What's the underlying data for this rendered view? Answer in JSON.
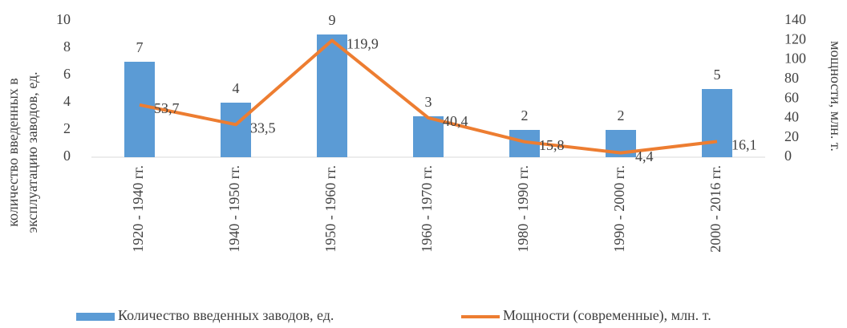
{
  "chart_data": {
    "type": "combo",
    "categories": [
      "1920 - 1940 гг.",
      "1940 - 1950 гг.",
      "1950 - 1960 гг.",
      "1960 - 1970 гг.",
      "1980 - 1990 гг.",
      "1990 - 2000 гг.",
      "2000 - 2016 гг."
    ],
    "series": [
      {
        "name": "Количество введенных заводов, ед.",
        "type": "bar",
        "color": "#5b9bd5",
        "values": [
          7,
          4,
          9,
          3,
          2,
          2,
          5
        ]
      },
      {
        "name": "Мощности (современные), млн. т.",
        "type": "line",
        "axis": "y2",
        "color": "#ed7d31",
        "values": [
          53.7,
          33.5,
          119.9,
          40.4,
          15.8,
          4.4,
          16.1
        ],
        "value_labels": [
          "53,7",
          "33,5",
          "119,9",
          "40,4",
          "15,8",
          "4,4",
          "16,1"
        ]
      }
    ],
    "y_label": [
      "количество введенных в",
      "эксплуатацию заводов, ед."
    ],
    "y2_label": "мощности, млн. т.",
    "ylim": [
      0,
      10
    ],
    "yticks": [
      0,
      2,
      4,
      6,
      8,
      10
    ],
    "y2lim": [
      0,
      140
    ],
    "y2ticks": [
      0,
      20,
      40,
      60,
      80,
      100,
      120,
      140
    ],
    "legend": "bottom"
  }
}
